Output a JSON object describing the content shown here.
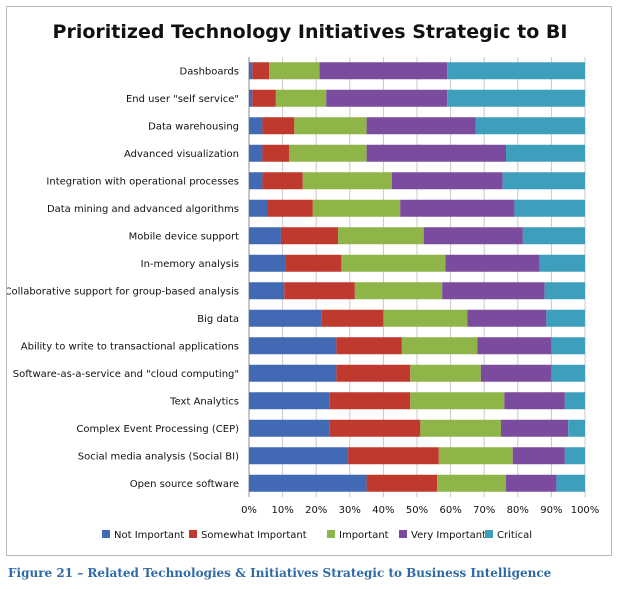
{
  "caption": "Figure 21 – Related Technologies & Initiatives Strategic to Business Intelligence",
  "chart_data": {
    "type": "bar",
    "orientation": "horizontal",
    "stacked": "percent",
    "title": "Prioritized Technology Initiatives Strategic to BI",
    "xlabel": "",
    "ylabel": "",
    "xlim": [
      0,
      100
    ],
    "x_ticks": [
      "0%",
      "10%",
      "20%",
      "30%",
      "40%",
      "50%",
      "60%",
      "70%",
      "80%",
      "90%",
      "100%"
    ],
    "grid": "vertical",
    "legend_position": "bottom",
    "categories": [
      "Dashboards",
      "End user \"self service\"",
      "Data warehousing",
      "Advanced visualization",
      "Integration with operational processes",
      "Data mining and advanced algorithms",
      "Mobile device support",
      "In-memory analysis",
      "Collaborative support for group-based analysis",
      "Big data",
      "Ability to write to transactional applications",
      "Software-as-a-service and \"cloud computing\"",
      "Text Analytics",
      "Complex Event Processing (CEP)",
      "Social media analysis (Social BI)",
      "Open source software"
    ],
    "series": [
      {
        "name": "Not Important",
        "color": "#4169b4",
        "values": [
          1,
          1,
          4,
          4,
          4,
          5.5,
          9.5,
          11,
          10.5,
          21.5,
          26,
          26,
          24,
          24,
          29.5,
          35
        ]
      },
      {
        "name": "Somewhat Important",
        "color": "#c0392f",
        "values": [
          5,
          7,
          9.5,
          8,
          12,
          13.5,
          17,
          16.5,
          21,
          18.5,
          19.5,
          22,
          24,
          27,
          27,
          21
        ]
      },
      {
        "name": "Important",
        "color": "#8fb447",
        "values": [
          15,
          15,
          21.5,
          23,
          26.5,
          26,
          25.5,
          31,
          26,
          25,
          22.5,
          21,
          28,
          24,
          22,
          20.5
        ]
      },
      {
        "name": "Very Important",
        "color": "#7a4b9e",
        "values": [
          38,
          36,
          32.5,
          41.5,
          33,
          34,
          29.5,
          28,
          30.5,
          23.5,
          22,
          21,
          18,
          20,
          15.5,
          15
        ]
      },
      {
        "name": "Critical",
        "color": "#3e9fbd",
        "values": [
          41,
          41,
          32.5,
          23.5,
          24.5,
          21,
          18.5,
          13.5,
          12,
          11.5,
          10,
          10,
          6,
          5,
          6,
          8.5
        ]
      }
    ]
  }
}
